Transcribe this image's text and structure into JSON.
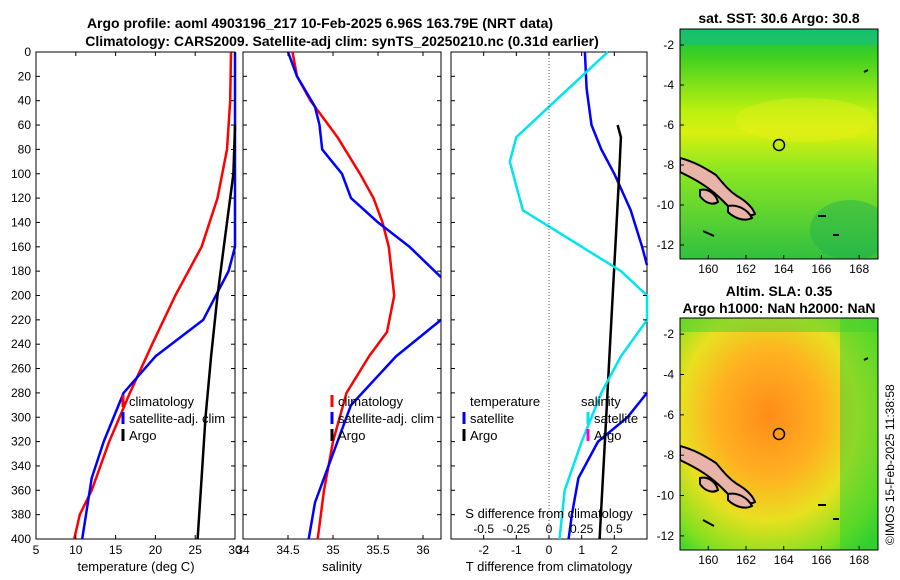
{
  "header": {
    "title_line1": "Argo profile: aoml 4903196_217 10-Feb-2025 6.96S 163.79E (NRT data)",
    "title_line2": "Climatology: CARS2009. Satellite-adj clim: synTS_20250210.nc (0.31d earlier)"
  },
  "side_label": "©IMOS 15-Feb-2025 11:38:58",
  "colors": {
    "climatology": "#ff0000",
    "satellite": "#0000ff",
    "argo": "#000000",
    "salinity_diff": "#00e5ee",
    "argo_salinity_diff": "#ff00cc",
    "land": "#e8b4a8"
  },
  "chart_data": [
    {
      "type": "line",
      "xlabel": "temperature (deg C)",
      "xlim": [
        5,
        30
      ],
      "xticks": [
        "5",
        "10",
        "15",
        "20",
        "25",
        "30"
      ],
      "ylim": [
        0,
        400
      ],
      "yticks": [
        "0",
        "20",
        "40",
        "60",
        "80",
        "100",
        "120",
        "140",
        "160",
        "180",
        "200",
        "220",
        "240",
        "260",
        "280",
        "300",
        "320",
        "340",
        "360",
        "380",
        "400"
      ],
      "legend": [
        "climatology",
        "satellite-adj. clim",
        "Argo"
      ],
      "series": [
        {
          "name": "climatology",
          "points": [
            [
              29.5,
              0
            ],
            [
              29.4,
              40
            ],
            [
              29.0,
              80
            ],
            [
              27.8,
              120
            ],
            [
              25.8,
              160
            ],
            [
              22.5,
              200
            ],
            [
              19.6,
              240
            ],
            [
              16.8,
              280
            ],
            [
              14.2,
              320
            ],
            [
              12.0,
              360
            ],
            [
              10.5,
              380
            ],
            [
              9.8,
              400
            ]
          ]
        },
        {
          "name": "satellite-adj. clim",
          "points": [
            [
              30.5,
              0
            ],
            [
              30.4,
              40
            ],
            [
              30.3,
              80
            ],
            [
              30.2,
              120
            ],
            [
              30.0,
              160
            ],
            [
              29.2,
              180
            ],
            [
              26.0,
              220
            ],
            [
              20.0,
              250
            ],
            [
              16.0,
              280
            ],
            [
              13.5,
              320
            ],
            [
              12.0,
              350
            ],
            [
              10.8,
              400
            ]
          ]
        },
        {
          "name": "Argo",
          "points": [
            [
              30.5,
              60
            ],
            [
              29.8,
              100
            ],
            [
              28.8,
              150
            ],
            [
              27.8,
              200
            ],
            [
              27.0,
              250
            ],
            [
              26.3,
              300
            ],
            [
              25.8,
              350
            ],
            [
              25.3,
              400
            ]
          ]
        }
      ]
    },
    {
      "type": "line",
      "xlabel": "salinity",
      "xlim": [
        34,
        36.2
      ],
      "xticks": [
        "34",
        "34.5",
        "35",
        "35.5",
        "36"
      ],
      "ylim": [
        0,
        400
      ],
      "legend": [
        "climatology",
        "satellite-adj. clim",
        "Argo"
      ],
      "series": [
        {
          "name": "climatology",
          "points": [
            [
              34.55,
              0
            ],
            [
              34.6,
              20
            ],
            [
              34.75,
              40
            ],
            [
              35.05,
              70
            ],
            [
              35.3,
              100
            ],
            [
              35.45,
              120
            ],
            [
              35.55,
              140
            ],
            [
              35.62,
              160
            ],
            [
              35.68,
              200
            ],
            [
              35.6,
              230
            ],
            [
              35.4,
              250
            ],
            [
              35.15,
              280
            ],
            [
              35.0,
              320
            ],
            [
              34.9,
              360
            ],
            [
              34.83,
              400
            ]
          ]
        },
        {
          "name": "satellite-adj. clim",
          "points": [
            [
              34.5,
              0
            ],
            [
              34.6,
              20
            ],
            [
              34.8,
              45
            ],
            [
              34.85,
              60
            ],
            [
              34.88,
              80
            ],
            [
              35.1,
              100
            ],
            [
              35.2,
              120
            ],
            [
              35.5,
              140
            ],
            [
              35.85,
              160
            ],
            [
              36.2,
              185
            ]
          ]
        },
        {
          "name": "satellite-adj. clim (deep)",
          "points": [
            [
              36.2,
              220
            ],
            [
              35.7,
              250
            ],
            [
              35.2,
              290
            ],
            [
              34.95,
              340
            ],
            [
              34.8,
              370
            ],
            [
              34.73,
              400
            ]
          ]
        }
      ]
    },
    {
      "type": "line",
      "xlabel": "T difference from climatology",
      "x2label": "S difference from climatology",
      "xlim": [
        -3,
        3
      ],
      "xticks": [
        "-2",
        "-1",
        "0",
        "1",
        "2"
      ],
      "x2ticks": [
        "-0.5",
        "-0.25",
        "0",
        "0.25",
        "0.5"
      ],
      "ylim": [
        0,
        400
      ],
      "legend_left_title": "temperature",
      "legend_left": [
        "satellite",
        "Argo"
      ],
      "legend_right_title": "salinity",
      "legend_right": [
        "satellite",
        "Argo"
      ],
      "series": [
        {
          "name": "temperature satellite",
          "points": [
            [
              1.1,
              0
            ],
            [
              1.15,
              30
            ],
            [
              1.3,
              60
            ],
            [
              1.6,
              80
            ],
            [
              2.0,
              100
            ],
            [
              2.5,
              130
            ],
            [
              2.85,
              160
            ],
            [
              3.0,
              175
            ]
          ]
        },
        {
          "name": "temperature satellite (deep)",
          "points": [
            [
              3.0,
              280
            ],
            [
              2.4,
              300
            ],
            [
              1.5,
              320
            ],
            [
              0.9,
              350
            ],
            [
              0.7,
              380
            ],
            [
              0.6,
              400
            ]
          ]
        },
        {
          "name": "temperature Argo",
          "points": [
            [
              2.1,
              60
            ],
            [
              2.2,
              70
            ],
            [
              2.15,
              100
            ],
            [
              2.05,
              150
            ],
            [
              1.95,
              200
            ],
            [
              1.85,
              250
            ],
            [
              1.75,
              300
            ],
            [
              1.65,
              350
            ],
            [
              1.55,
              400
            ]
          ]
        },
        {
          "name": "salinity satellite",
          "points": [
            [
              0.45,
              0
            ],
            [
              0.25,
              20
            ],
            [
              0.05,
              40
            ],
            [
              -0.25,
              70
            ],
            [
              -0.3,
              90
            ],
            [
              -0.25,
              110
            ],
            [
              -0.2,
              130
            ],
            [
              0.1,
              150
            ],
            [
              0.55,
              180
            ],
            [
              0.8,
              200
            ],
            [
              0.75,
              220
            ],
            [
              0.55,
              250
            ],
            [
              0.4,
              280
            ],
            [
              0.25,
              320
            ],
            [
              0.12,
              360
            ],
            [
              0.08,
              400
            ]
          ]
        }
      ]
    },
    {
      "type": "heatmap",
      "title": "sat. SST: 30.6 Argo: 30.8",
      "xlim": [
        158.5,
        169
      ],
      "xticks": [
        "160",
        "162",
        "164",
        "166",
        "168"
      ],
      "ylim": [
        -12.7,
        -1.2
      ],
      "yticks": [
        "-2",
        "-4",
        "-6",
        "-8",
        "-10",
        "-12"
      ],
      "marker": {
        "lon": 163.79,
        "lat": -6.96
      }
    },
    {
      "type": "heatmap",
      "title_line1": "Altim. SLA: 0.35",
      "title_line2": "Argo h1000: NaN h2000: NaN",
      "xlim": [
        158.5,
        169
      ],
      "xticks": [
        "160",
        "162",
        "164",
        "166",
        "168"
      ],
      "ylim": [
        -12.7,
        -1.2
      ],
      "yticks": [
        "-2",
        "-4",
        "-6",
        "-8",
        "-10",
        "-12"
      ],
      "marker": {
        "lon": 163.79,
        "lat": -6.96
      }
    }
  ]
}
